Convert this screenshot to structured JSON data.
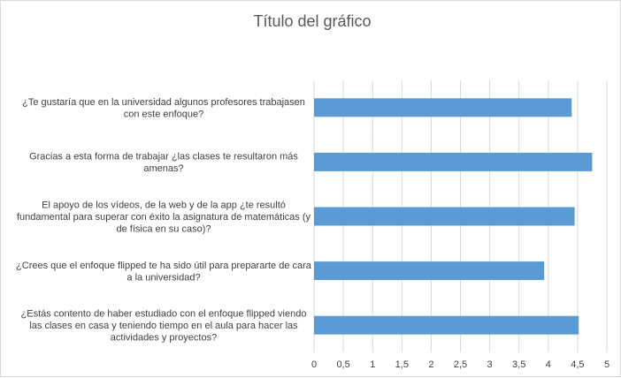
{
  "chart_data": {
    "type": "bar",
    "orientation": "horizontal",
    "title": "Título del gráfico",
    "xlim": [
      0,
      5
    ],
    "x_ticks": [
      0,
      0.5,
      1,
      1.5,
      2,
      2.5,
      3,
      3.5,
      4,
      4.5,
      5
    ],
    "x_tick_labels": [
      "0",
      "0,5",
      "1",
      "1,5",
      "2",
      "2,5",
      "3",
      "3,5",
      "4",
      "4,5",
      "5"
    ],
    "grid": "vertical",
    "legend": "none",
    "bar_color": "#5b9bd5",
    "categories": [
      "¿Te gustaría que en la universidad algunos profesores trabajasen con este enfoque?",
      "Gracias a esta forma de trabajar ¿las clases te resultaron más amenas?",
      "El apoyo de los vídeos, de la web y de la app ¿te resultó fundamental para superar con éxito la asignatura de matemáticas (y de física en su caso)?",
      "¿Crees que el enfoque flipped te ha sido útil para prepararte de cara a la universidad?",
      "¿Estás contento de haber estudiado con el enfoque flipped viendo las clases en casa y teniendo tiempo en el aula para hacer las actividades y proyectos?"
    ],
    "category_label_lines": [
      [
        "¿Te gustaría que en la universidad algunos profesores trabajasen",
        "con este enfoque?"
      ],
      [
        "Gracias a esta forma de trabajar ¿las clases te resultaron más",
        "amenas?"
      ],
      [
        "El apoyo de los vídeos, de la web y de la app ¿te resultó",
        "fundamental para superar con éxito la asignatura de matemáticas (y",
        "de física en su caso)?"
      ],
      [
        "¿Crees que el enfoque flipped te ha sido útil para prepararte de cara",
        "a la universidad?"
      ],
      [
        "¿Estás contento de haber estudiado con el enfoque flipped viendo",
        "las clases en casa y teniendo tiempo en el aula para hacer las",
        "actividades y proyectos?"
      ]
    ],
    "values": [
      4.4,
      4.75,
      4.45,
      3.93,
      4.52
    ]
  }
}
